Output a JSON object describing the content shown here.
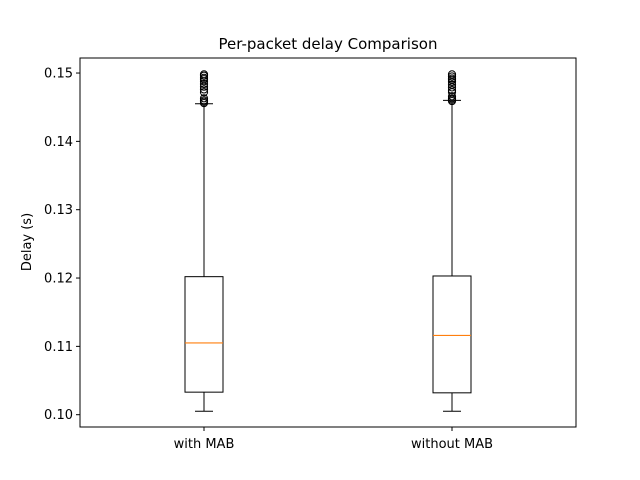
{
  "chart_data": {
    "type": "box",
    "title": "Per-packet delay Comparison",
    "xlabel": "",
    "ylabel": "Delay (s)",
    "ylim": [
      0.0982,
      0.1522
    ],
    "yticks": [
      "0.10",
      "0.11",
      "0.12",
      "0.13",
      "0.14",
      "0.15"
    ],
    "categories": [
      "with MAB",
      "without MAB"
    ],
    "boxes": [
      {
        "category": "with MAB",
        "whisker_low": 0.1005,
        "q1": 0.1033,
        "median": 0.1105,
        "q3": 0.1202,
        "whisker_high": 0.1455,
        "outliers": [
          0.1456,
          0.1458,
          0.146,
          0.1463,
          0.1472,
          0.1476,
          0.148,
          0.1484,
          0.1488,
          0.1491,
          0.1493,
          0.1496,
          0.1498
        ]
      },
      {
        "category": "without MAB",
        "whisker_low": 0.1005,
        "q1": 0.1032,
        "median": 0.1116,
        "q3": 0.1203,
        "whisker_high": 0.146,
        "outliers": [
          0.1459,
          0.1461,
          0.1463,
          0.1466,
          0.1472,
          0.1475,
          0.1479,
          0.1483,
          0.1487,
          0.149,
          0.1492,
          0.1495,
          0.1498
        ]
      }
    ],
    "colors": {
      "box": "#000000",
      "median": "#ff7f0e",
      "outlier": "#000000"
    },
    "grid": false,
    "legend": "none"
  }
}
